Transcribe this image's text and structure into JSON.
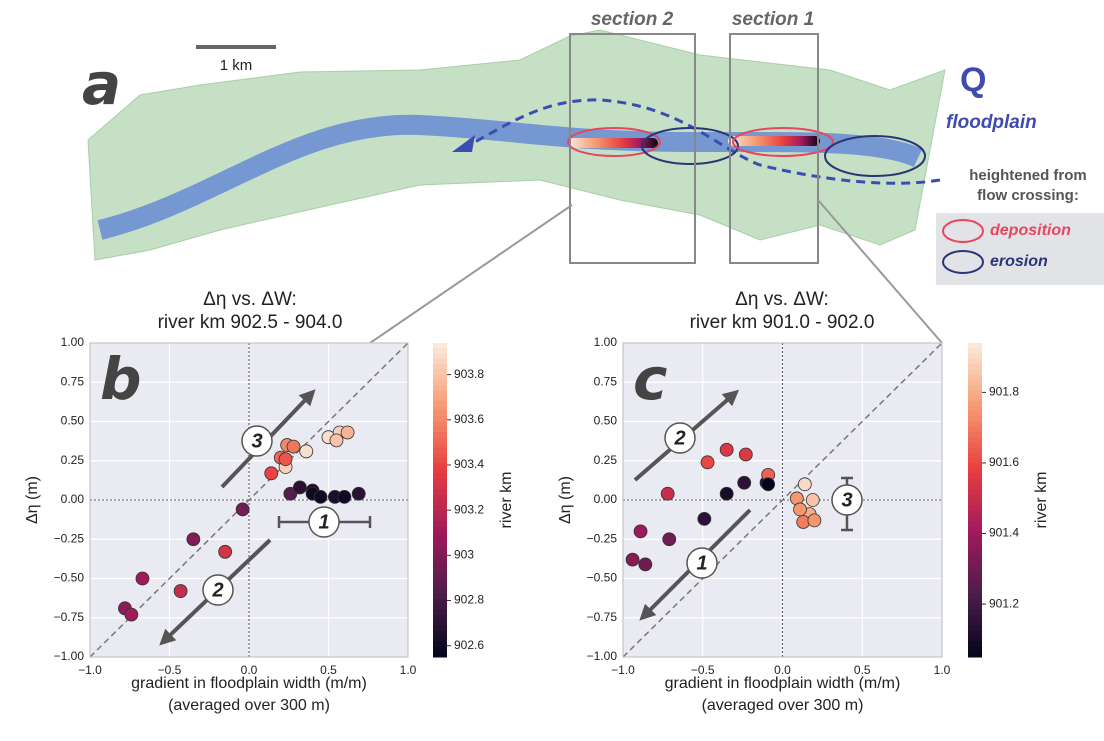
{
  "map": {
    "label": "a",
    "scale": "1 km",
    "section_2": "section 2",
    "section_1": "section 1",
    "q": "Q",
    "floodplain": "floodplain",
    "note_1": "heightened from",
    "note_2": "flow crossing:",
    "deposition": "deposition",
    "erosion": "erosion"
  },
  "chart_data": [
    {
      "type": "scatter",
      "panel": "b",
      "title": "Δη vs. ΔW:",
      "subtitle": "river km 902.5 - 904.0",
      "ylabel": "Δη (m)",
      "xlabel": "gradient in floodplain width (m/m)",
      "xlabel_2": "(averaged over 300 m)",
      "colorbar_label": "river km",
      "annotations": [
        "3",
        "2",
        "1"
      ],
      "xlim": [
        -1,
        1
      ],
      "ylim": [
        -1,
        1
      ],
      "xticks": [
        {
          "value": -1,
          "label": "−1.0"
        },
        {
          "value": -0.5,
          "label": "−0.5"
        },
        {
          "value": 0,
          "label": "0.0"
        },
        {
          "value": 0.5,
          "label": "0.5"
        },
        {
          "value": 1,
          "label": "1.0"
        }
      ],
      "yticks": [
        {
          "value": -1,
          "label": "−1.00"
        },
        {
          "value": -0.75,
          "label": "−0.75"
        },
        {
          "value": -0.5,
          "label": "−0.50"
        },
        {
          "value": -0.25,
          "label": "−0.25"
        },
        {
          "value": 0,
          "label": "0.00"
        },
        {
          "value": 0.25,
          "label": "0.25"
        },
        {
          "value": 0.5,
          "label": "0.50"
        },
        {
          "value": 0.75,
          "label": "0.75"
        },
        {
          "value": 1,
          "label": "1.00"
        }
      ],
      "clim": [
        902.55,
        903.94
      ],
      "cticks": [
        902.6,
        902.8,
        903.0,
        903.2,
        903.4,
        903.6,
        903.8
      ],
      "colormap": [
        "#03051a",
        "#4c1d4b",
        "#a11a5b",
        "#e83f3f",
        "#f69c73",
        "#faebdd"
      ],
      "grid": true,
      "x": [
        -0.78,
        -0.74,
        -0.67,
        -0.43,
        -0.35,
        -0.15,
        -0.04,
        0.14,
        0.2,
        0.24,
        0.28,
        0.23,
        0.36,
        0.23,
        0.5,
        0.57,
        0.62,
        0.55,
        0.26,
        0.32,
        0.4,
        0.4,
        0.54,
        0.6,
        0.69,
        0.45
      ],
      "values": [
        -0.69,
        -0.73,
        -0.5,
        -0.58,
        -0.25,
        -0.33,
        -0.06,
        0.17,
        0.27,
        0.35,
        0.34,
        0.21,
        0.31,
        0.26,
        0.4,
        0.43,
        0.43,
        0.38,
        0.04,
        0.08,
        0.06,
        0.04,
        0.02,
        0.02,
        0.04,
        0.02
      ],
      "c": [
        903.05,
        903.1,
        903.1,
        903.25,
        903.0,
        903.3,
        902.95,
        903.4,
        903.5,
        903.6,
        903.55,
        903.85,
        903.9,
        903.45,
        903.9,
        903.85,
        903.75,
        903.8,
        902.85,
        902.7,
        902.65,
        902.6,
        902.65,
        902.6,
        902.7,
        902.6
      ]
    },
    {
      "type": "scatter",
      "panel": "c",
      "title": "Δη vs. ΔW:",
      "subtitle": "river km 901.0 - 902.0",
      "ylabel": "Δη (m)",
      "xlabel": "gradient in floodplain width (m/m)",
      "xlabel_2": "(averaged over 300 m)",
      "colorbar_label": "river km",
      "annotations": [
        "2",
        "1",
        "3"
      ],
      "xlim": [
        -1,
        1
      ],
      "ylim": [
        -1,
        1
      ],
      "xticks": [
        {
          "value": -1,
          "label": "−1.0"
        },
        {
          "value": -0.5,
          "label": "−0.5"
        },
        {
          "value": 0,
          "label": "0.0"
        },
        {
          "value": 0.5,
          "label": "0.5"
        },
        {
          "value": 1,
          "label": "1.0"
        }
      ],
      "yticks": [
        {
          "value": -1,
          "label": "−1.00"
        },
        {
          "value": -0.75,
          "label": "−0.75"
        },
        {
          "value": -0.5,
          "label": "−0.50"
        },
        {
          "value": -0.25,
          "label": "−0.25"
        },
        {
          "value": 0,
          "label": "0.00"
        },
        {
          "value": 0.25,
          "label": "0.25"
        },
        {
          "value": 0.5,
          "label": "0.50"
        },
        {
          "value": 0.75,
          "label": "0.75"
        },
        {
          "value": 1,
          "label": "1.00"
        }
      ],
      "clim": [
        901.05,
        901.94
      ],
      "cticks": [
        901.2,
        901.4,
        901.6,
        901.8
      ],
      "colormap": [
        "#03051a",
        "#4c1d4b",
        "#a11a5b",
        "#e83f3f",
        "#f69c73",
        "#faebdd"
      ],
      "grid": true,
      "x": [
        -0.94,
        -0.86,
        -0.89,
        -0.71,
        -0.72,
        -0.49,
        -0.47,
        -0.35,
        -0.35,
        -0.23,
        -0.24,
        -0.1,
        -0.09,
        -0.09,
        0.09,
        0.14,
        0.19,
        0.17,
        0.13,
        0.2,
        0.11
      ],
      "values": [
        -0.38,
        -0.41,
        -0.2,
        -0.25,
        0.04,
        -0.12,
        0.24,
        0.32,
        0.04,
        0.29,
        0.11,
        0.11,
        0.16,
        0.1,
        0.01,
        0.1,
        0,
        -0.09,
        -0.14,
        -0.13,
        -0.06
      ],
      "c": [
        901.35,
        901.3,
        901.4,
        901.3,
        901.5,
        901.15,
        901.6,
        901.55,
        901.1,
        901.55,
        901.15,
        901.1,
        901.65,
        901.05,
        901.75,
        901.9,
        901.85,
        901.8,
        901.7,
        901.75,
        901.75
      ]
    }
  ]
}
